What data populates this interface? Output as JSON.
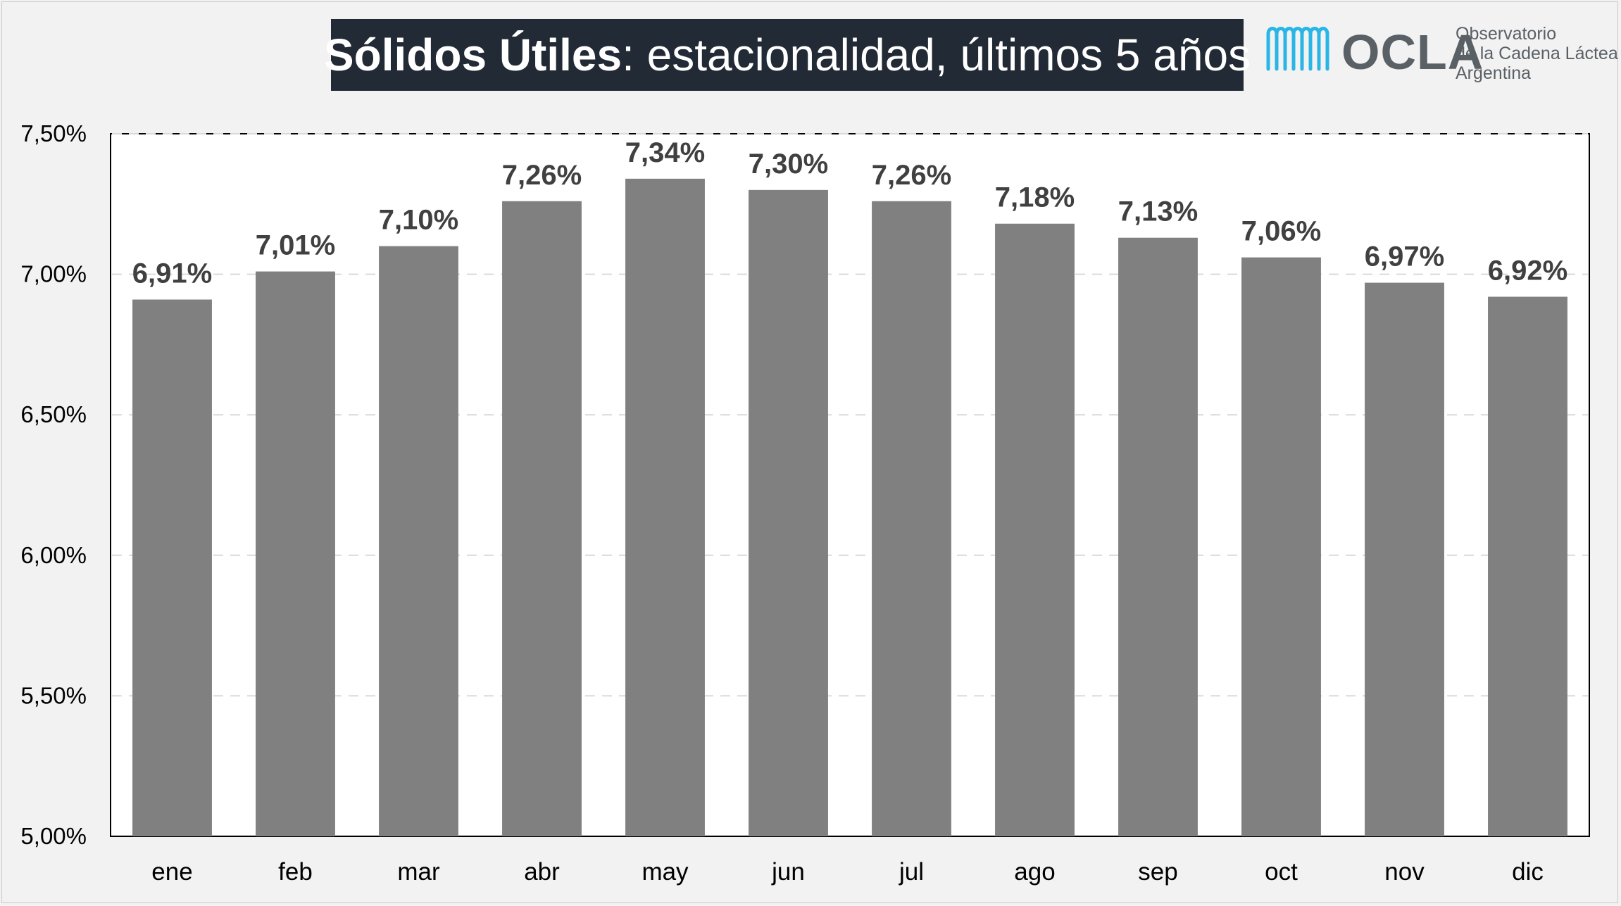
{
  "title": {
    "bold": "Sólidos Útiles",
    "rest": ": estacionalidad, últimos 5 años"
  },
  "logo": {
    "wordmark": "OCLA",
    "line1": "Observatorio",
    "line2": "de la Cadena Láctea",
    "line3": "Argentina",
    "accent_color": "#29b6e6",
    "text_color": "#596066"
  },
  "chart_data": {
    "type": "bar",
    "title": "Sólidos Útiles: estacionalidad, últimos 5 años",
    "categories": [
      "ene",
      "feb",
      "mar",
      "abr",
      "may",
      "jun",
      "jul",
      "ago",
      "sep",
      "oct",
      "nov",
      "dic"
    ],
    "values": [
      6.91,
      7.01,
      7.1,
      7.26,
      7.34,
      7.3,
      7.26,
      7.18,
      7.13,
      7.06,
      6.97,
      6.92
    ],
    "data_labels": [
      "6,91%",
      "7,01%",
      "7,10%",
      "7,26%",
      "7,34%",
      "7,30%",
      "7,26%",
      "7,18%",
      "7,13%",
      "7,06%",
      "6,97%",
      "6,92%"
    ],
    "ylim": [
      5.0,
      7.5
    ],
    "yticks": [
      5.0,
      5.5,
      6.0,
      6.5,
      7.0,
      7.5
    ],
    "ytick_labels": [
      "5,00%",
      "5,50%",
      "6,00%",
      "6,50%",
      "7,00%",
      "7,50%"
    ],
    "xlabel": "",
    "ylabel": "",
    "grid": true,
    "bar_color": "#808080"
  }
}
